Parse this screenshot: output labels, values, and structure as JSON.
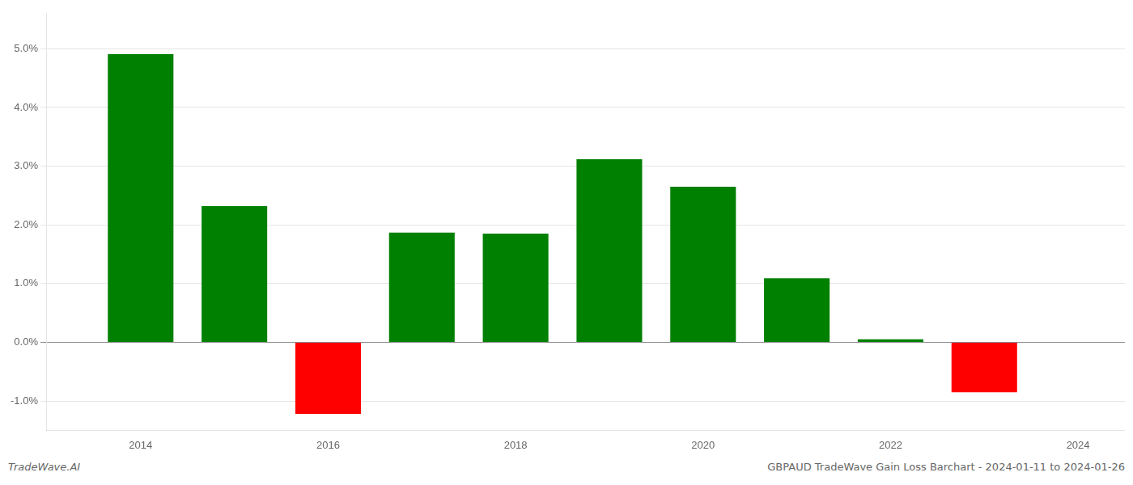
{
  "chart_data": {
    "type": "bar",
    "title": "GBPAUD TradeWave Gain Loss Barchart - 2024-01-11 to 2024-01-26",
    "annotations": [
      "TradeWave.AI"
    ],
    "x": [
      2014,
      2015,
      2016,
      2017,
      2018,
      2019,
      2020,
      2021,
      2022,
      2023
    ],
    "values": [
      0.0491,
      0.0232,
      -0.0122,
      0.0187,
      0.0185,
      0.0312,
      0.0265,
      0.0109,
      0.0005,
      -0.0085
    ],
    "colors": [
      "#008000",
      "#008000",
      "#ff0000",
      "#008000",
      "#008000",
      "#008000",
      "#008000",
      "#008000",
      "#008000",
      "#ff0000"
    ],
    "xlim": [
      2013.0,
      2024.5
    ],
    "xticks": [
      2014,
      2016,
      2018,
      2020,
      2022,
      2024
    ],
    "ylim": [
      -0.015,
      0.056
    ],
    "yticks": [
      {
        "value": -0.01,
        "label": "-1.0%"
      },
      {
        "value": 0.0,
        "label": "0.0%"
      },
      {
        "value": 0.01,
        "label": "1.0%"
      },
      {
        "value": 0.02,
        "label": "2.0%"
      },
      {
        "value": 0.03,
        "label": "3.0%"
      },
      {
        "value": 0.04,
        "label": "4.0%"
      },
      {
        "value": 0.05,
        "label": "5.0%"
      }
    ],
    "grid": true
  }
}
